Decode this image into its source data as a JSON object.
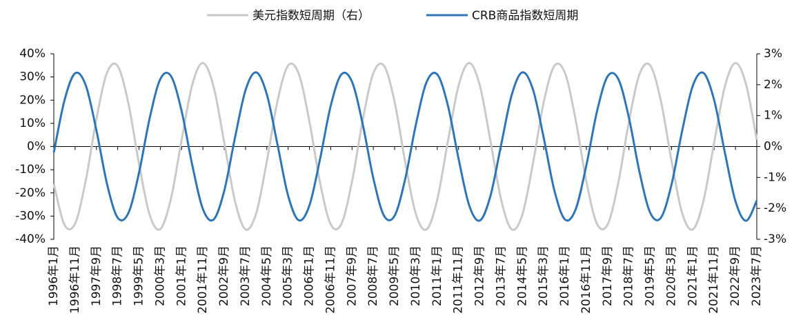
{
  "chart_data": {
    "type": "line",
    "categories": [
      "1996年1月",
      null,
      "1996年11月",
      null,
      "1997年9月",
      null,
      "1998年7月",
      null,
      "1999年5月",
      null,
      "2000年3月",
      null,
      "2001年1月",
      null,
      "2001年11月",
      null,
      "2002年9月",
      null,
      "2003年7月",
      null,
      "2004年5月",
      null,
      "2005年3月",
      null,
      "2006年1月",
      null,
      "2006年11月",
      null,
      "2007年9月",
      null,
      "2008年7月",
      null,
      "2009年5月",
      null,
      "2010年3月",
      null,
      "2011年1月",
      null,
      "2011年11月",
      null,
      "2012年9月",
      null,
      "2013年7月",
      null,
      "2014年5月",
      null,
      "2015年3月",
      null,
      "2016年1月",
      null,
      "2016年11月",
      null,
      "2017年9月",
      null,
      "2018年7月",
      null,
      "2019年5月",
      null,
      "2020年3月",
      null,
      "2021年1月",
      null,
      "2021年11月",
      null,
      "2022年9月",
      null,
      "2023年7月"
    ],
    "series": [
      {
        "name": "美元指数短周期（右）",
        "color": "#c9c9c9",
        "axis": "y2",
        "values": [
          -1.21,
          -2.53,
          -2.49,
          -1.1,
          0.89,
          2.39,
          2.6,
          1.4,
          -0.56,
          -2.21,
          -2.67,
          -1.68,
          0.21,
          2.0,
          2.7,
          1.94,
          0.13,
          -1.75,
          -2.68,
          -2.16,
          -0.48,
          1.47,
          2.62,
          2.35,
          0.81,
          -1.17,
          -2.52,
          -2.5,
          -1.13,
          0.85,
          2.37,
          2.61,
          1.44,
          -0.52,
          -2.19,
          -2.68,
          -1.72,
          0.17,
          1.97,
          2.7,
          1.97,
          0.17,
          -1.72,
          -2.68,
          -2.19,
          -0.52,
          1.44,
          2.61,
          2.37,
          0.85,
          -1.13,
          -2.5,
          -2.52,
          -1.17,
          0.81,
          2.35,
          2.62,
          1.47,
          -0.47,
          -2.16,
          -2.68,
          -1.75,
          0.13,
          1.94,
          2.7,
          2.0,
          0.22
        ]
      },
      {
        "name": "CRB商品指数短周期",
        "color": "#2e75b6",
        "values": [
          -2.6,
          19.9,
          31.6,
          26.4,
          7.0,
          -16.2,
          -30.7,
          -28.7,
          -11.3,
          12.2,
          29.1,
          30.4,
          15.3,
          -8.0,
          -27.0,
          -31.5,
          -19.1,
          3.6,
          24.3,
          32.0,
          22.5,
          0.9,
          -21.2,
          -31.8,
          -25.4,
          -5.3,
          17.6,
          31.1,
          27.9,
          9.7,
          -13.7,
          -29.8,
          -29.8,
          -13.8,
          9.6,
          27.8,
          31.1,
          17.7,
          -5.2,
          -25.4,
          -31.9,
          -21.2,
          0.8,
          22.4,
          32.0,
          24.4,
          3.7,
          -19.0,
          -31.5,
          -27.0,
          -8.1,
          15.2,
          30.3,
          29.1,
          12.3,
          -11.2,
          -28.6,
          -30.7,
          -16.3,
          6.9,
          26.3,
          31.7,
          20.0,
          -2.5,
          -23.6,
          -32.0,
          -23.3
        ]
      }
    ],
    "ylim": [
      -40,
      40
    ],
    "yticks": [
      {
        "value": -40,
        "label": "-40%"
      },
      {
        "value": -30,
        "label": "-30%"
      },
      {
        "value": -20,
        "label": "-20%"
      },
      {
        "value": -10,
        "label": "-10%"
      },
      {
        "value": 0,
        "label": "0%"
      },
      {
        "value": 10,
        "label": "10%"
      },
      {
        "value": 20,
        "label": "20%"
      },
      {
        "value": 30,
        "label": "30%"
      },
      {
        "value": 40,
        "label": "40%"
      }
    ],
    "y2lim": [
      -3,
      3
    ],
    "y2ticks": [
      {
        "value": -3,
        "label": "-3%"
      },
      {
        "value": -2,
        "label": "-2%"
      },
      {
        "value": -1,
        "label": "-1%"
      },
      {
        "value": 0,
        "label": "0%"
      },
      {
        "value": 1,
        "label": "1%"
      },
      {
        "value": 2,
        "label": "2%"
      },
      {
        "value": 3,
        "label": "3%"
      }
    ],
    "legend": "top"
  }
}
